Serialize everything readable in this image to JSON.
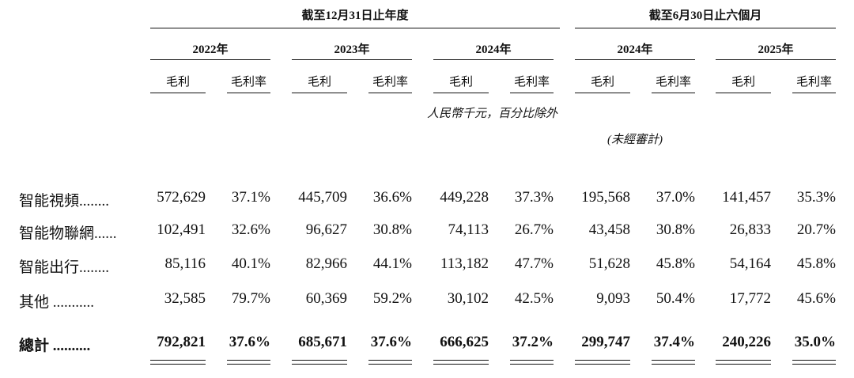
{
  "header": {
    "year_group": "截至12月31日止年度",
    "half_group": "截至6月30日止六個月",
    "periods": [
      "2022年",
      "2023年",
      "2024年",
      "2024年",
      "2025年"
    ],
    "col_profit": "毛利",
    "col_margin": "毛利率"
  },
  "notes": {
    "units": "人民幣千元，百分比除外",
    "unaudited": "(未經審計)"
  },
  "rows": [
    {
      "label": "智能視頻........",
      "values": [
        "572,629",
        "37.1%",
        "445,709",
        "36.6%",
        "449,228",
        "37.3%",
        "195,568",
        "37.0%",
        "141,457",
        "35.3%"
      ]
    },
    {
      "label": "智能物聯網......",
      "values": [
        "102,491",
        "32.6%",
        "96,627",
        "30.8%",
        "74,113",
        "26.7%",
        "43,458",
        "30.8%",
        "26,833",
        "20.7%"
      ]
    },
    {
      "label": "智能出行........",
      "values": [
        "85,116",
        "40.1%",
        "82,966",
        "44.1%",
        "113,182",
        "47.7%",
        "51,628",
        "45.8%",
        "54,164",
        "45.8%"
      ]
    },
    {
      "label": "其他 ...........",
      "values": [
        "32,585",
        "79.7%",
        "60,369",
        "59.2%",
        "30,102",
        "42.5%",
        "9,093",
        "50.4%",
        "17,772",
        "45.6%"
      ]
    }
  ],
  "total": {
    "label": "總計 ..........",
    "values": [
      "792,821",
      "37.6%",
      "685,671",
      "37.6%",
      "666,625",
      "37.2%",
      "299,747",
      "37.4%",
      "240,226",
      "35.0%"
    ]
  }
}
